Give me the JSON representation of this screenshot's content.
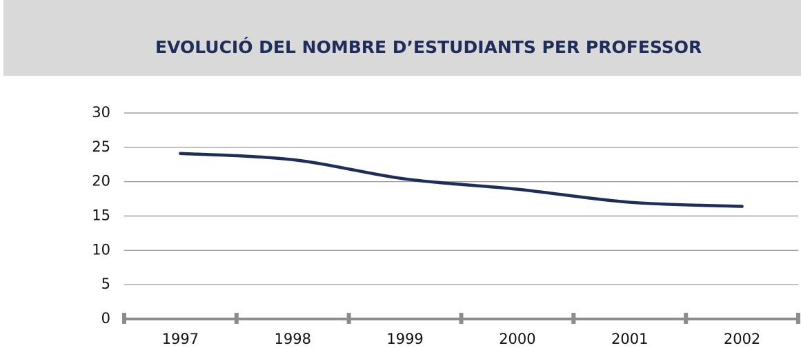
{
  "chart_data": {
    "type": "line",
    "title": "EVOLUCIÓ DEL NOMBRE D’ESTUDIANTS PER PROFESSOR",
    "categories": [
      "1997",
      "1998",
      "1999",
      "2000",
      "2001",
      "2002"
    ],
    "series": [
      {
        "color": "#1f2d5a",
        "values": [
          24.1,
          23.2,
          20.4,
          18.9,
          17.0,
          16.4
        ]
      }
    ],
    "ylim": [
      0,
      30
    ],
    "yticks": [
      0,
      5,
      10,
      15,
      20,
      25,
      30
    ],
    "grid": true
  }
}
